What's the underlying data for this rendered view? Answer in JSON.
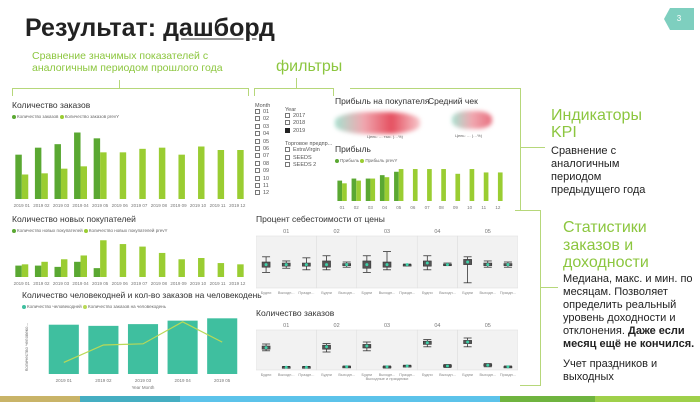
{
  "slide": {
    "title_plain": "Результат: ",
    "title_underlined": "дашборд",
    "page_number": "3"
  },
  "annotations": {
    "comparison": "Сравнение значимых показателей с аналогичным периодом прошлого года",
    "filters": "фильтры",
    "kpi_title": "Индикаторы KPI",
    "kpi_text": "Сравнение с аналогичным периодом предыдущего года",
    "stats_title": "Статистики заказов и доходности",
    "stats_text": "Медиана, макс. и мин. по месяцам. Позволяет определить реальный уровень доходности и отклонения.",
    "stats_bold": "Даже если месяц ещё не кончился.",
    "holidays": "Учет праздников и выходных"
  },
  "filters": {
    "month_label": "Month",
    "months": [
      "01",
      "02",
      "03",
      "04",
      "05",
      "06",
      "07",
      "08",
      "09",
      "10",
      "11",
      "12"
    ],
    "year_label": "Year",
    "years": [
      {
        "label": "2017",
        "checked": false
      },
      {
        "label": "2018",
        "checked": false
      },
      {
        "label": "2019",
        "checked": true
      }
    ],
    "trade_label": "Торговое предпр...",
    "trades": [
      "ExtraVirgin",
      "SEEDS",
      "SEEDS 2"
    ]
  },
  "kpi": {
    "profit_per_customer": "Прибыль на покупателя",
    "avg_check": "Средний чек",
    "goal1": "Цель: … тыс. (…%)",
    "goal2": "Цель: … (…%)"
  },
  "colors": {
    "current": "#5aa832",
    "prev": "#9acd32",
    "teal": "#3fbf9f",
    "line": "#b9d957"
  },
  "chart_data": [
    {
      "type": "bar",
      "title": "Количество заказов",
      "legend": [
        "Количество заказов",
        "Количество заказов prevY"
      ],
      "categories": [
        "2019 01",
        "2019 02",
        "2019 03",
        "2019 04",
        "2019 05",
        "2019 06",
        "2019 07",
        "2019 08",
        "2019 09",
        "2019 10",
        "2019 11",
        "2019 12"
      ],
      "series": [
        {
          "name": "Количество заказов",
          "values": [
            38,
            44,
            47,
            57,
            52,
            null,
            null,
            null,
            null,
            null,
            null,
            null
          ]
        },
        {
          "name": "Количество заказов prevY",
          "values": [
            21,
            22,
            26,
            28,
            40,
            40,
            43,
            44,
            38,
            45,
            42,
            42
          ]
        }
      ]
    },
    {
      "type": "bar",
      "title": "Количество новых покупателей",
      "legend": [
        "Количество новых покупателей",
        "Количество новых покупателей prevY"
      ],
      "categories": [
        "2019 01",
        "2019 02",
        "2019 03",
        "2019 04",
        "2019 05",
        "2019 06",
        "2019 07",
        "2019 08",
        "2019 09",
        "2019 10",
        "2019 11",
        "2019 12"
      ],
      "series": [
        {
          "name": "cur",
          "values": [
            9,
            9,
            8,
            12,
            7,
            null,
            null,
            null,
            null,
            null,
            null,
            null
          ]
        },
        {
          "name": "prev",
          "values": [
            10,
            12,
            14,
            17,
            29,
            26,
            24,
            19,
            14,
            15,
            11,
            10
          ]
        }
      ]
    },
    {
      "type": "bar",
      "title": "Прибыль",
      "legend": [
        "Прибыль",
        "Прибыль prevY"
      ],
      "categories": [
        "01",
        "02",
        "03",
        "04",
        "05",
        "06",
        "07",
        "08",
        "09",
        "10",
        "11",
        "12"
      ],
      "series": [
        {
          "name": "cur",
          "values": [
            30,
            33,
            33,
            38,
            43,
            null,
            null,
            null,
            null,
            null,
            null,
            null
          ]
        },
        {
          "name": "prev",
          "values": [
            26,
            30,
            33,
            35,
            47,
            47,
            47,
            47,
            40,
            47,
            42,
            42
          ]
        }
      ]
    },
    {
      "type": "bar+line",
      "title": "Количество человекодней и кол-во заказов на человекодень",
      "legend": [
        "Количество человекодней",
        "Количество заказов на человекодень"
      ],
      "ylabel": "Количество человеко...",
      "xlabel": "Year Month",
      "categories": [
        "2019 01",
        "2019 02",
        "2019 03",
        "2019 04",
        "2019 05"
      ],
      "bars": [
        85,
        83,
        86,
        92,
        96
      ],
      "line": [
        20,
        50,
        52,
        90,
        55
      ]
    },
    {
      "type": "boxplot",
      "title": "Процент себестоимости от цены",
      "months": [
        "01",
        "02",
        "03",
        "04",
        "05"
      ],
      "groups": [
        [
          "Будни",
          "Выходн...",
          "Праздн..."
        ],
        [
          "Будни",
          "Выходн..."
        ],
        [
          "Будни",
          "Выходн...",
          "Праздн..."
        ],
        [
          "Будни",
          "Выходн..."
        ],
        [
          "Будни",
          "Выходн...",
          "Праздн..."
        ]
      ],
      "boxes": [
        [
          [
            30,
            40,
            45,
            50,
            60
          ],
          [
            38,
            42,
            45,
            48,
            52
          ],
          [
            35,
            42,
            45,
            48,
            58
          ]
        ],
        [
          [
            35,
            40,
            45,
            52,
            62
          ],
          [
            40,
            43,
            45,
            47,
            50
          ]
        ],
        [
          [
            30,
            38,
            45,
            52,
            62
          ],
          [
            35,
            40,
            45,
            50,
            70
          ],
          [
            44,
            45,
            45,
            45,
            46
          ]
        ],
        [
          [
            35,
            42,
            48,
            52,
            62
          ],
          [
            43,
            44,
            45,
            46,
            48
          ]
        ],
        [
          [
            10,
            45,
            50,
            55,
            60
          ],
          [
            40,
            43,
            45,
            48,
            52
          ],
          [
            40,
            43,
            45,
            47,
            50
          ]
        ]
      ]
    },
    {
      "type": "boxplot",
      "title": "Количество заказов",
      "xlabel": "Выходные и праздники",
      "months": [
        "01",
        "02",
        "03",
        "04",
        "05"
      ],
      "groups": [
        [
          "Будни",
          "Выходн...",
          "Праздн..."
        ],
        [
          "Будни",
          "Выходн..."
        ],
        [
          "Будни",
          "Выходн...",
          "Праздн..."
        ],
        [
          "Будни",
          "Выходн..."
        ],
        [
          "Будни",
          "Выходн...",
          "Праздн..."
        ]
      ],
      "boxes": [
        [
          [
            48,
            52,
            56,
            60,
            65
          ],
          [
            5,
            6,
            7,
            8,
            9
          ],
          [
            5,
            6,
            7,
            8,
            9
          ]
        ],
        [
          [
            45,
            52,
            58,
            62,
            66
          ],
          [
            6,
            7,
            8,
            9,
            10
          ]
        ],
        [
          [
            48,
            55,
            60,
            64,
            70
          ],
          [
            5,
            7,
            8,
            9,
            10
          ],
          [
            8,
            9,
            10,
            11,
            12
          ]
        ],
        [
          [
            58,
            64,
            68,
            72,
            76
          ],
          [
            6,
            8,
            10,
            12,
            14
          ]
        ],
        [
          [
            58,
            66,
            70,
            74,
            80
          ],
          [
            8,
            10,
            12,
            14,
            16
          ],
          [
            6,
            7,
            8,
            9,
            10
          ]
        ]
      ]
    }
  ]
}
